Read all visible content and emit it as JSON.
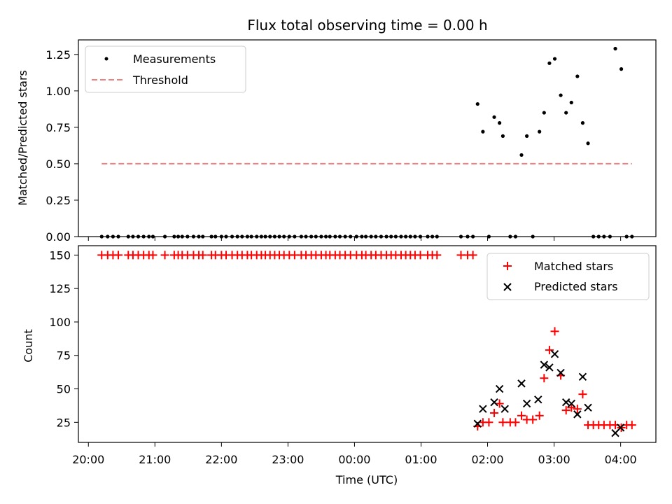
{
  "chart_data": [
    {
      "type": "scatter",
      "title": "Flux total observing time = 0.00 h",
      "xlabel": "",
      "ylabel": "Matched/Predicted stars",
      "ylim": [
        0,
        1.35
      ],
      "yticks": [
        "0.00",
        "0.25",
        "0.50",
        "0.75",
        "1.00",
        "1.25"
      ],
      "legend_position": "top-left",
      "series": [
        {
          "name": "Measurements",
          "marker": "dot",
          "color": "#000000",
          "x_hours": [
            20.2,
            20.29,
            20.37,
            20.45,
            20.6,
            20.67,
            20.75,
            20.83,
            20.91,
            20.97,
            21.15,
            21.29,
            21.35,
            21.41,
            21.49,
            21.58,
            21.66,
            21.72,
            21.85,
            21.91,
            22.0,
            22.07,
            22.16,
            22.24,
            22.31,
            22.39,
            22.45,
            22.53,
            22.6,
            22.66,
            22.73,
            22.8,
            22.87,
            22.94,
            23.02,
            23.1,
            23.2,
            23.27,
            23.35,
            23.42,
            23.5,
            23.57,
            23.63,
            23.71,
            23.78,
            23.86,
            23.94,
            24.03,
            24.11,
            24.17,
            24.25,
            24.32,
            24.4,
            24.48,
            24.55,
            24.62,
            24.7,
            24.77,
            24.84,
            24.91,
            24.99,
            25.1,
            25.17,
            25.24,
            25.6,
            25.7,
            25.78,
            25.85,
            25.93,
            26.02,
            26.1,
            26.18,
            26.23,
            26.34,
            26.42,
            26.51,
            26.59,
            26.68,
            26.78,
            26.85,
            26.93,
            27.01,
            27.1,
            27.18,
            27.26,
            27.35,
            27.43,
            27.51,
            27.59,
            27.67,
            27.75,
            27.84,
            27.92,
            28.01,
            28.09,
            28.17
          ],
          "values": [
            0,
            0,
            0,
            0,
            0,
            0,
            0,
            0,
            0,
            0,
            0,
            0,
            0,
            0,
            0,
            0,
            0,
            0,
            0,
            0,
            0,
            0,
            0,
            0,
            0,
            0,
            0,
            0,
            0,
            0,
            0,
            0,
            0,
            0,
            0,
            0,
            0,
            0,
            0,
            0,
            0,
            0,
            0,
            0,
            0,
            0,
            0,
            0,
            0,
            0,
            0,
            0,
            0,
            0,
            0,
            0,
            0,
            0,
            0,
            0,
            0,
            0,
            0,
            0,
            0,
            0,
            0,
            0.91,
            0.72,
            0,
            0.82,
            0.78,
            0.69,
            0,
            0,
            0.56,
            0.69,
            0,
            0.72,
            0.85,
            1.19,
            1.22,
            0.97,
            0.85,
            0.92,
            1.1,
            0.78,
            0.64,
            0,
            0,
            0,
            0,
            1.29,
            1.15,
            0,
            0
          ]
        },
        {
          "name": "Threshold",
          "marker": "dashed-line",
          "color": "#f08080",
          "x_hours": [
            20.2,
            28.17
          ],
          "values": [
            0.5,
            0.5
          ]
        }
      ]
    },
    {
      "type": "scatter",
      "title": "",
      "xlabel": "Time (UTC)",
      "ylabel": "Count",
      "ylim": [
        10,
        157
      ],
      "yticks": [
        "25",
        "50",
        "75",
        "100",
        "125",
        "150"
      ],
      "xlim_hours": [
        19.85,
        28.53
      ],
      "xticks": [
        "20:00",
        "21:00",
        "22:00",
        "23:00",
        "00:00",
        "01:00",
        "02:00",
        "03:00",
        "04:00"
      ],
      "xticks_hours": [
        20,
        21,
        22,
        23,
        24,
        25,
        26,
        27,
        28
      ],
      "legend_position": "top-right",
      "series": [
        {
          "name": "Matched stars",
          "marker": "plus",
          "color": "#ff0000",
          "x_hours": [
            20.2,
            20.29,
            20.37,
            20.45,
            20.6,
            20.67,
            20.75,
            20.83,
            20.91,
            20.97,
            21.15,
            21.29,
            21.35,
            21.41,
            21.49,
            21.58,
            21.66,
            21.72,
            21.85,
            21.91,
            22.0,
            22.07,
            22.16,
            22.24,
            22.31,
            22.39,
            22.45,
            22.53,
            22.6,
            22.66,
            22.73,
            22.8,
            22.87,
            22.94,
            23.02,
            23.1,
            23.2,
            23.27,
            23.35,
            23.42,
            23.5,
            23.57,
            23.63,
            23.71,
            23.78,
            23.86,
            23.94,
            24.03,
            24.11,
            24.17,
            24.25,
            24.32,
            24.4,
            24.48,
            24.55,
            24.62,
            24.7,
            24.77,
            24.84,
            24.91,
            24.99,
            25.1,
            25.17,
            25.24,
            25.6,
            25.7,
            25.78,
            25.85,
            25.93,
            26.02,
            26.1,
            26.18,
            26.23,
            26.34,
            26.42,
            26.51,
            26.59,
            26.68,
            26.78,
            26.85,
            26.93,
            27.01,
            27.1,
            27.18,
            27.26,
            27.35,
            27.43,
            27.51,
            27.59,
            27.67,
            27.75,
            27.84,
            27.92,
            28.01,
            28.09,
            28.17
          ],
          "values": [
            150,
            150,
            150,
            150,
            150,
            150,
            150,
            150,
            150,
            150,
            150,
            150,
            150,
            150,
            150,
            150,
            150,
            150,
            150,
            150,
            150,
            150,
            150,
            150,
            150,
            150,
            150,
            150,
            150,
            150,
            150,
            150,
            150,
            150,
            150,
            150,
            150,
            150,
            150,
            150,
            150,
            150,
            150,
            150,
            150,
            150,
            150,
            150,
            150,
            150,
            150,
            150,
            150,
            150,
            150,
            150,
            150,
            150,
            150,
            150,
            150,
            150,
            150,
            150,
            150,
            150,
            150,
            22,
            25,
            25,
            32,
            39,
            25,
            25,
            25,
            30,
            27,
            27,
            30,
            58,
            79,
            93,
            60,
            34,
            36,
            35,
            46,
            23,
            23,
            23,
            23,
            23,
            23,
            21,
            23,
            23
          ]
        },
        {
          "name": "Predicted stars",
          "marker": "x",
          "color": "#000000",
          "x_hours": [
            25.85,
            25.93,
            26.1,
            26.18,
            26.26,
            26.51,
            26.59,
            26.76,
            26.85,
            26.93,
            27.01,
            27.1,
            27.18,
            27.26,
            27.35,
            27.43,
            27.51,
            27.92,
            28.0
          ],
          "values": [
            24,
            35,
            40,
            50,
            35,
            54,
            39,
            42,
            68,
            66,
            76,
            62,
            40,
            39,
            31,
            59,
            36,
            17,
            21
          ]
        }
      ]
    }
  ]
}
